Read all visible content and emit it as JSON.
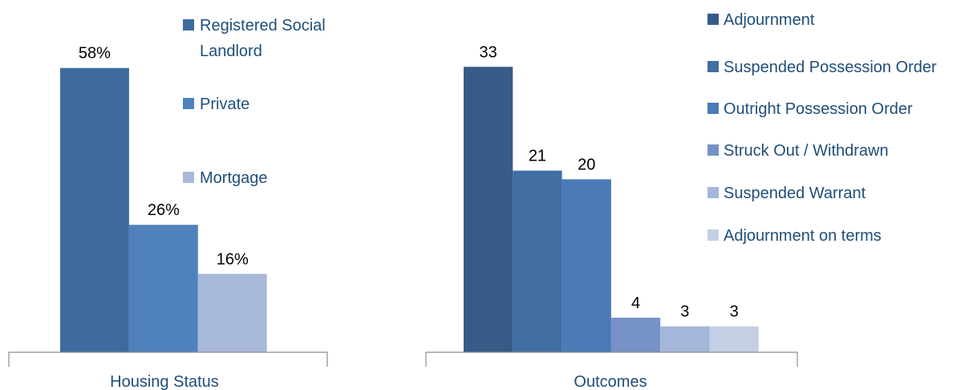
{
  "chart_data": [
    {
      "type": "bar",
      "categories": [
        "Housing Status"
      ],
      "series": [
        {
          "name": "Registered Social Landlord",
          "values": [
            58
          ],
          "label": "58%",
          "color": "#3f6aa0"
        },
        {
          "name": "Private",
          "values": [
            26
          ],
          "label": "26%",
          "color": "#4f81bd"
        },
        {
          "name": "Mortgage",
          "values": [
            16
          ],
          "label": "16%",
          "color": "#a9b9d9"
        }
      ],
      "legend_lines": [
        [
          "Registered Social",
          "Landlord"
        ],
        [
          "Private"
        ],
        [
          "Mortgage"
        ]
      ],
      "ylim": [
        0,
        60
      ],
      "unit": "%",
      "grid": false,
      "legend_position": "right"
    },
    {
      "type": "bar",
      "categories": [
        "Outcomes"
      ],
      "series": [
        {
          "name": "Adjournment",
          "values": [
            33
          ],
          "label": "33",
          "color": "#375b87"
        },
        {
          "name": "Suspended Possession Order",
          "values": [
            21
          ],
          "label": "21",
          "color": "#416ea3"
        },
        {
          "name": "Outright Possession Order",
          "values": [
            20
          ],
          "label": "20",
          "color": "#4a7bb6"
        },
        {
          "name": "Struck Out / Withdrawn",
          "values": [
            4
          ],
          "label": "4",
          "color": "#7692c6"
        },
        {
          "name": "Suspended Warrant",
          "values": [
            3
          ],
          "label": "3",
          "color": "#a4b6d9"
        },
        {
          "name": "Adjournment on terms",
          "values": [
            3
          ],
          "label": "3",
          "color": "#c4cfe5"
        }
      ],
      "ylim": [
        0,
        34
      ],
      "grid": false,
      "legend_position": "right"
    }
  ]
}
